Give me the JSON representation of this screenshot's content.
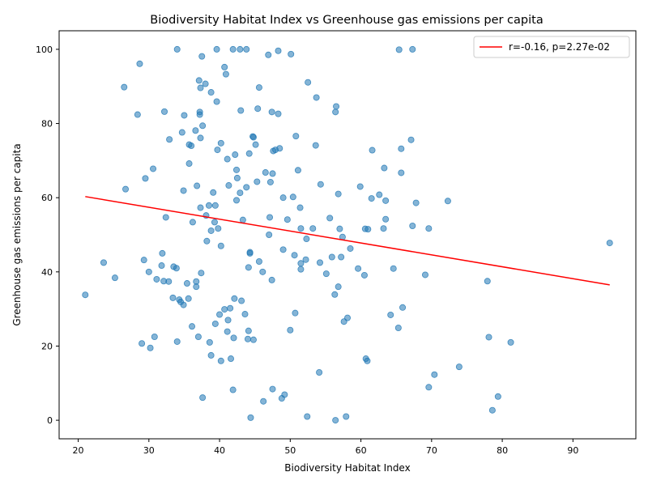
{
  "chart_data": {
    "type": "scatter",
    "title": "Biodiversity Habitat Index vs Greenhouse gas emissions per capita",
    "xlabel": "Biodiversity Habitat Index",
    "ylabel": "Greenhouse gas emissions per capita",
    "xlim": [
      17.3,
      98.9
    ],
    "ylim": [
      -5.0,
      105.0
    ],
    "xticks": [
      20,
      30,
      40,
      50,
      60,
      70,
      80,
      90
    ],
    "yticks": [
      0,
      20,
      40,
      60,
      80,
      100
    ],
    "grid": false,
    "legend": {
      "position": "top-right",
      "entries": [
        "r=-0.16, p=2.27e-02"
      ]
    },
    "point_color": "#1f77b4",
    "fit_color": "#ff0000",
    "fit_line": {
      "x": [
        21.0,
        95.2
      ],
      "y": [
        60.3,
        36.5
      ]
    },
    "points": [
      [
        21.0,
        33.8
      ],
      [
        23.6,
        42.5
      ],
      [
        25.2,
        38.4
      ],
      [
        26.5,
        89.8
      ],
      [
        26.7,
        62.3
      ],
      [
        28.4,
        82.4
      ],
      [
        28.7,
        96.1
      ],
      [
        29.0,
        20.7
      ],
      [
        29.3,
        43.2
      ],
      [
        29.5,
        65.2
      ],
      [
        30.0,
        40.0
      ],
      [
        30.2,
        19.5
      ],
      [
        30.6,
        67.8
      ],
      [
        30.8,
        22.5
      ],
      [
        31.1,
        38.0
      ],
      [
        31.8,
        41.7
      ],
      [
        31.9,
        45.0
      ],
      [
        32.1,
        37.5
      ],
      [
        32.2,
        83.2
      ],
      [
        32.4,
        54.7
      ],
      [
        32.8,
        37.4
      ],
      [
        32.9,
        75.7
      ],
      [
        33.4,
        33.0
      ],
      [
        33.5,
        41.4
      ],
      [
        33.9,
        41.0
      ],
      [
        34.0,
        100.0
      ],
      [
        34.0,
        21.2
      ],
      [
        34.3,
        32.5
      ],
      [
        34.5,
        31.9
      ],
      [
        34.7,
        77.6
      ],
      [
        34.9,
        31.1
      ],
      [
        34.9,
        61.9
      ],
      [
        35.0,
        82.2
      ],
      [
        35.4,
        36.9
      ],
      [
        35.6,
        32.8
      ],
      [
        35.7,
        69.2
      ],
      [
        35.7,
        74.3
      ],
      [
        36.0,
        74.0
      ],
      [
        36.1,
        25.3
      ],
      [
        36.2,
        53.4
      ],
      [
        36.6,
        78.1
      ],
      [
        36.7,
        37.4
      ],
      [
        36.7,
        36.0
      ],
      [
        36.8,
        63.2
      ],
      [
        37.0,
        22.5
      ],
      [
        37.1,
        91.6
      ],
      [
        37.2,
        83.1
      ],
      [
        37.2,
        82.4
      ],
      [
        37.3,
        89.6
      ],
      [
        37.3,
        57.3
      ],
      [
        37.3,
        76.1
      ],
      [
        37.4,
        39.7
      ],
      [
        37.5,
        98.1
      ],
      [
        37.6,
        79.4
      ],
      [
        37.6,
        6.1
      ],
      [
        38.0,
        90.7
      ],
      [
        38.1,
        55.2
      ],
      [
        38.2,
        48.3
      ],
      [
        38.5,
        57.9
      ],
      [
        38.6,
        21.0
      ],
      [
        38.8,
        88.4
      ],
      [
        38.8,
        17.5
      ],
      [
        38.8,
        51.1
      ],
      [
        39.1,
        61.4
      ],
      [
        39.3,
        53.4
      ],
      [
        39.4,
        57.9
      ],
      [
        39.4,
        26.0
      ],
      [
        39.6,
        85.9
      ],
      [
        39.6,
        100.0
      ],
      [
        39.7,
        72.9
      ],
      [
        39.8,
        51.7
      ],
      [
        40.0,
        28.5
      ],
      [
        40.2,
        16.0
      ],
      [
        40.2,
        74.7
      ],
      [
        40.2,
        47.0
      ],
      [
        40.7,
        95.2
      ],
      [
        40.7,
        29.9
      ],
      [
        40.9,
        93.3
      ],
      [
        41.1,
        70.4
      ],
      [
        41.1,
        23.9
      ],
      [
        41.2,
        27.0
      ],
      [
        41.3,
        63.3
      ],
      [
        41.5,
        30.2
      ],
      [
        41.6,
        16.6
      ],
      [
        41.9,
        100.0
      ],
      [
        41.9,
        8.2
      ],
      [
        42.0,
        22.2
      ],
      [
        42.1,
        32.8
      ],
      [
        42.2,
        71.6
      ],
      [
        42.4,
        67.5
      ],
      [
        42.4,
        59.3
      ],
      [
        42.5,
        65.3
      ],
      [
        42.9,
        61.3
      ],
      [
        42.9,
        100.0
      ],
      [
        43.0,
        83.5
      ],
      [
        43.1,
        32.2
      ],
      [
        43.3,
        54.0
      ],
      [
        43.6,
        28.6
      ],
      [
        43.8,
        62.8
      ],
      [
        43.8,
        100.0
      ],
      [
        44.0,
        21.9
      ],
      [
        44.1,
        24.1
      ],
      [
        44.1,
        41.2
      ],
      [
        44.2,
        71.9
      ],
      [
        44.3,
        45.0
      ],
      [
        44.3,
        45.3
      ],
      [
        44.4,
        0.7
      ],
      [
        44.7,
        76.5
      ],
      [
        44.8,
        21.7
      ],
      [
        44.8,
        76.3
      ],
      [
        45.1,
        74.3
      ],
      [
        45.3,
        64.3
      ],
      [
        45.4,
        84.0
      ],
      [
        45.6,
        42.8
      ],
      [
        45.6,
        89.7
      ],
      [
        46.1,
        40.0
      ],
      [
        46.2,
        5.1
      ],
      [
        46.5,
        66.8
      ],
      [
        46.9,
        98.5
      ],
      [
        47.0,
        50.0
      ],
      [
        47.1,
        54.7
      ],
      [
        47.2,
        64.2
      ],
      [
        47.4,
        37.8
      ],
      [
        47.4,
        83.1
      ],
      [
        47.5,
        66.5
      ],
      [
        47.5,
        8.4
      ],
      [
        47.6,
        72.6
      ],
      [
        47.9,
        72.9
      ],
      [
        48.3,
        82.6
      ],
      [
        48.3,
        99.6
      ],
      [
        48.5,
        73.3
      ],
      [
        48.8,
        5.9
      ],
      [
        49.0,
        46.0
      ],
      [
        49.0,
        60.0
      ],
      [
        49.2,
        6.9
      ],
      [
        49.6,
        54.1
      ],
      [
        50.0,
        24.3
      ],
      [
        50.1,
        98.7
      ],
      [
        50.4,
        60.2
      ],
      [
        50.6,
        44.5
      ],
      [
        50.7,
        28.9
      ],
      [
        50.8,
        76.6
      ],
      [
        51.1,
        67.4
      ],
      [
        51.4,
        57.3
      ],
      [
        51.5,
        42.3
      ],
      [
        51.5,
        40.7
      ],
      [
        51.5,
        51.7
      ],
      [
        52.2,
        43.3
      ],
      [
        52.3,
        48.9
      ],
      [
        52.4,
        1.0
      ],
      [
        52.5,
        91.1
      ],
      [
        53.2,
        51.7
      ],
      [
        53.6,
        74.1
      ],
      [
        53.7,
        87.0
      ],
      [
        54.1,
        12.9
      ],
      [
        54.2,
        42.5
      ],
      [
        54.3,
        63.6
      ],
      [
        55.1,
        39.5
      ],
      [
        55.6,
        54.5
      ],
      [
        55.9,
        44.0
      ],
      [
        56.3,
        33.9
      ],
      [
        56.4,
        0.0
      ],
      [
        56.4,
        83.1
      ],
      [
        56.5,
        84.6
      ],
      [
        56.8,
        61.0
      ],
      [
        56.8,
        36.0
      ],
      [
        57.0,
        51.6
      ],
      [
        57.2,
        44.0
      ],
      [
        57.4,
        49.4
      ],
      [
        57.6,
        26.6
      ],
      [
        57.9,
        1.0
      ],
      [
        58.1,
        27.6
      ],
      [
        58.5,
        46.3
      ],
      [
        59.6,
        40.9
      ],
      [
        59.9,
        63.0
      ],
      [
        60.5,
        39.1
      ],
      [
        60.6,
        51.6
      ],
      [
        60.7,
        16.6
      ],
      [
        60.9,
        16.0
      ],
      [
        61.0,
        51.5
      ],
      [
        61.5,
        59.8
      ],
      [
        61.6,
        72.8
      ],
      [
        62.6,
        60.8
      ],
      [
        63.2,
        51.7
      ],
      [
        63.3,
        68.0
      ],
      [
        63.5,
        54.2
      ],
      [
        63.5,
        59.2
      ],
      [
        64.2,
        28.4
      ],
      [
        64.6,
        40.9
      ],
      [
        65.3,
        24.9
      ],
      [
        65.4,
        99.9
      ],
      [
        65.7,
        66.7
      ],
      [
        65.7,
        73.2
      ],
      [
        65.9,
        30.4
      ],
      [
        67.1,
        75.6
      ],
      [
        67.3,
        52.4
      ],
      [
        67.3,
        100.0
      ],
      [
        67.8,
        58.6
      ],
      [
        69.1,
        39.2
      ],
      [
        69.6,
        51.7
      ],
      [
        69.6,
        8.9
      ],
      [
        70.4,
        12.3
      ],
      [
        72.3,
        59.1
      ],
      [
        73.9,
        14.4
      ],
      [
        77.9,
        37.5
      ],
      [
        78.1,
        22.4
      ],
      [
        78.6,
        2.7
      ],
      [
        79.4,
        6.4
      ],
      [
        81.2,
        21.0
      ],
      [
        95.2,
        47.8
      ]
    ]
  }
}
